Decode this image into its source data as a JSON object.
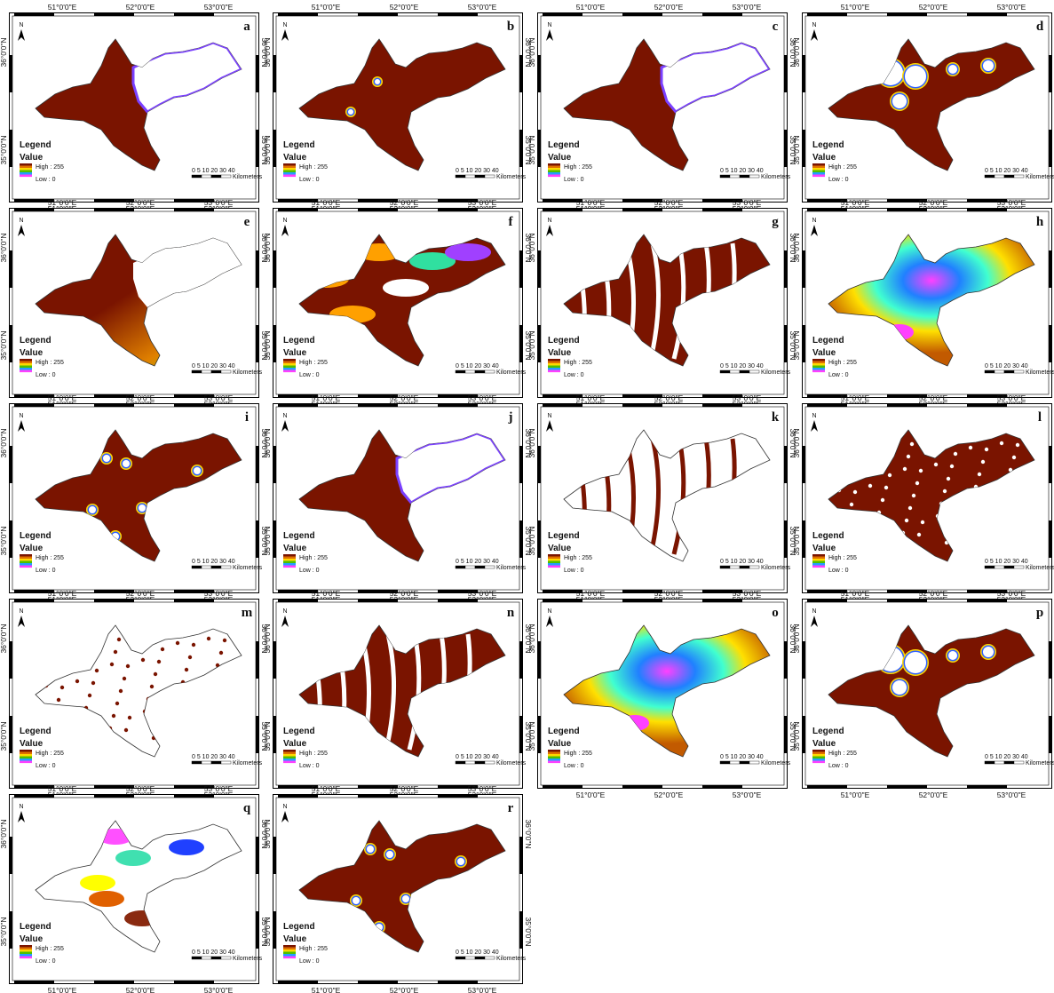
{
  "panels": [
    {
      "letter": "a",
      "fill": "#7a1400",
      "style": "edges"
    },
    {
      "letter": "b",
      "fill": "#7a1400",
      "style": "holes"
    },
    {
      "letter": "c",
      "fill": "#7a1400",
      "style": "edges"
    },
    {
      "letter": "d",
      "fill": "#7a1400",
      "style": "blobs"
    },
    {
      "letter": "e",
      "fill": "#7a1400",
      "style": "elevation"
    },
    {
      "letter": "f",
      "fill": "#7a1400",
      "style": "classes"
    },
    {
      "letter": "g",
      "fill": "#7a1400",
      "style": "rivers"
    },
    {
      "letter": "h",
      "fill": "#c25a00",
      "style": "interp"
    },
    {
      "letter": "i",
      "fill": "#7a1400",
      "style": "spots"
    },
    {
      "letter": "j",
      "fill": "#7a1400",
      "style": "westonly"
    },
    {
      "letter": "k",
      "fill": "#ffffff",
      "style": "roads"
    },
    {
      "letter": "l",
      "fill": "#7a1400",
      "style": "scatter"
    },
    {
      "letter": "m",
      "fill": "#ffffff",
      "style": "noise"
    },
    {
      "letter": "n",
      "fill": "#7a1400",
      "style": "streams"
    },
    {
      "letter": "o",
      "fill": "#c25a00",
      "style": "interp"
    },
    {
      "letter": "p",
      "fill": "#7a1400",
      "style": "blobs"
    },
    {
      "letter": "q",
      "fill": "#ffffff",
      "style": "geology"
    },
    {
      "letter": "r",
      "fill": "#7a1400",
      "style": "spots"
    }
  ],
  "axis": {
    "x_ticks": [
      "51°0'0\"E",
      "52°0'0\"E",
      "53°0'0\"E"
    ],
    "y_ticks": [
      "36°0'0\"N",
      "35°0'0\"N"
    ]
  },
  "legend": {
    "title": "Legend",
    "subtitle": "Value",
    "high": "High : 255",
    "low": "Low : 0",
    "ramp": [
      "#7a1400",
      "#e07000",
      "#ffd800",
      "#4ec000",
      "#20a0ff",
      "#ff40ff"
    ]
  },
  "scale_bar": {
    "labels": "0 5 10  20  30  40",
    "unit": "Kilometers"
  },
  "north_label": "N"
}
